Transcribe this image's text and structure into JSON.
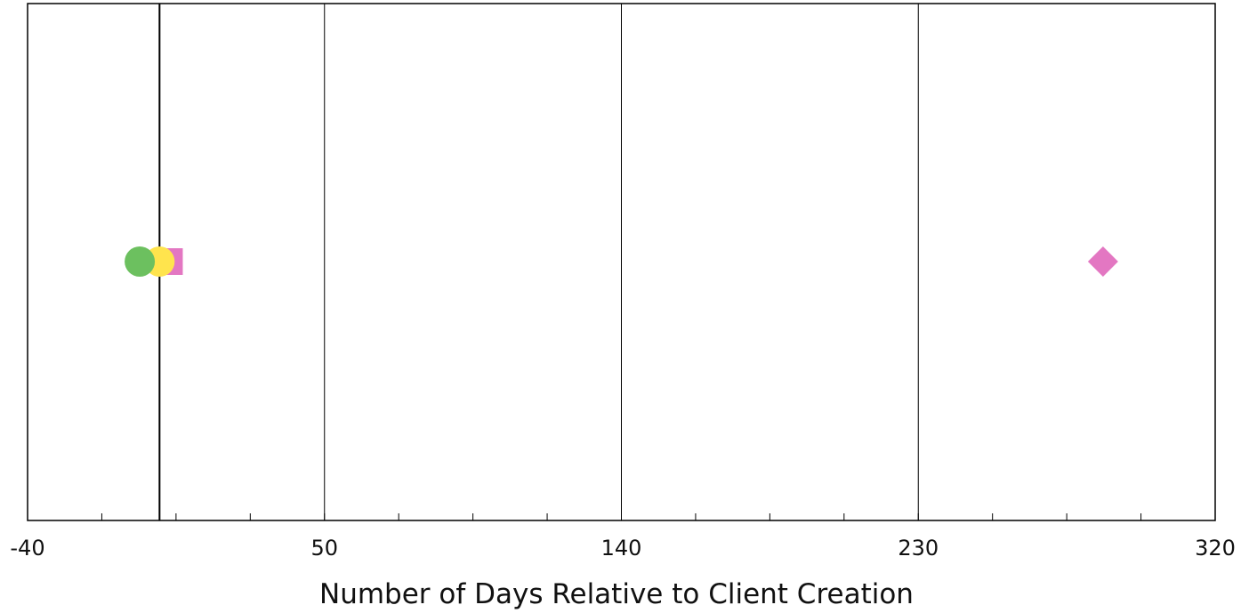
{
  "chart_data": {
    "type": "scatter",
    "xlabel": "Number of Days Relative to Client Creation",
    "xlim": [
      -40,
      320
    ],
    "x_ticks": [
      -40,
      50,
      140,
      230,
      320
    ],
    "x_tick_labels": [
      "-40",
      "50",
      "140",
      "230",
      "320"
    ],
    "x_minor_step": 22.5,
    "grid_x": true,
    "reference_line_x": 0,
    "y_ticks": false,
    "series": [
      {
        "marker": "square",
        "color": "#e377c2",
        "points": [
          {
            "x": 3,
            "y": 0
          }
        ]
      },
      {
        "marker": "circle",
        "color": "#ffe44d",
        "points": [
          {
            "x": 0,
            "y": 0
          }
        ]
      },
      {
        "marker": "circle",
        "color": "#6cc05f",
        "points": [
          {
            "x": -6,
            "y": 0
          }
        ]
      },
      {
        "marker": "diamond",
        "color": "#e377c2",
        "points": [
          {
            "x": 286,
            "y": 0
          }
        ]
      }
    ]
  }
}
